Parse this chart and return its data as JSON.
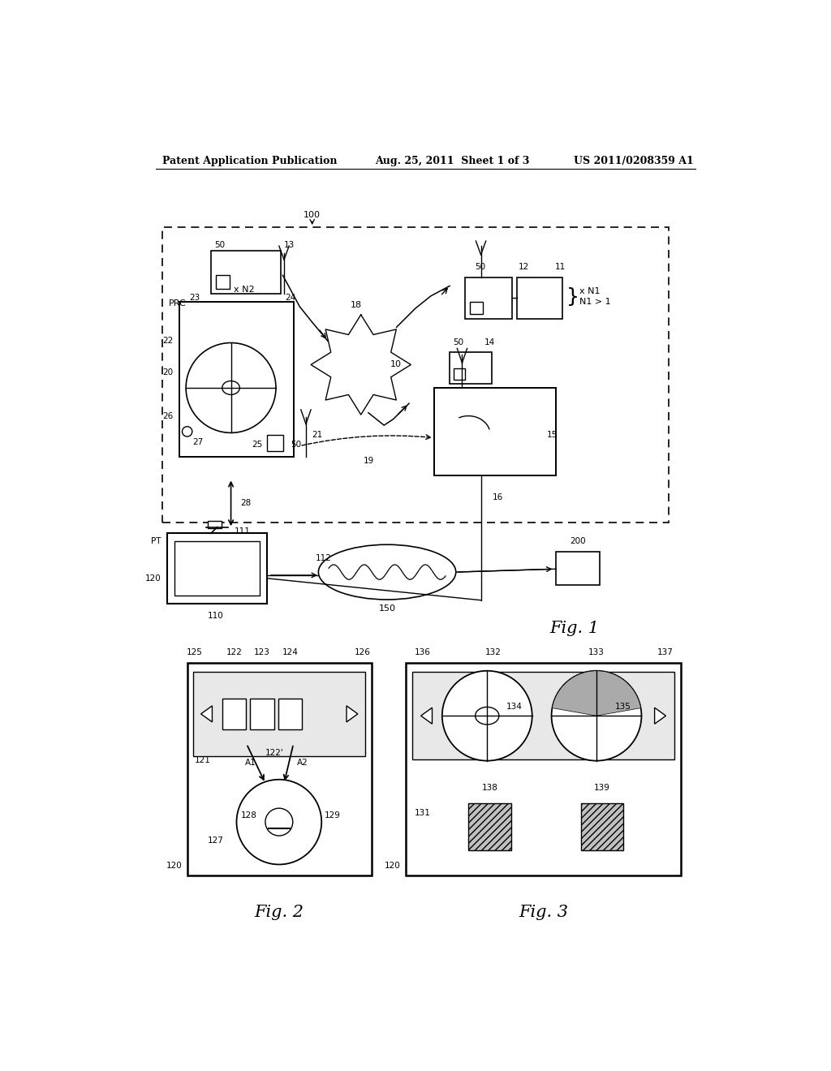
{
  "header_left": "Patent Application Publication",
  "header_mid": "Aug. 25, 2011  Sheet 1 of 3",
  "header_right": "US 2011/0208359 A1",
  "fig1_label": "Fig. 1",
  "fig2_label": "Fig. 2",
  "fig3_label": "Fig. 3",
  "bg_color": "#ffffff",
  "line_color": "#000000",
  "light_gray": "#d8d8d8"
}
